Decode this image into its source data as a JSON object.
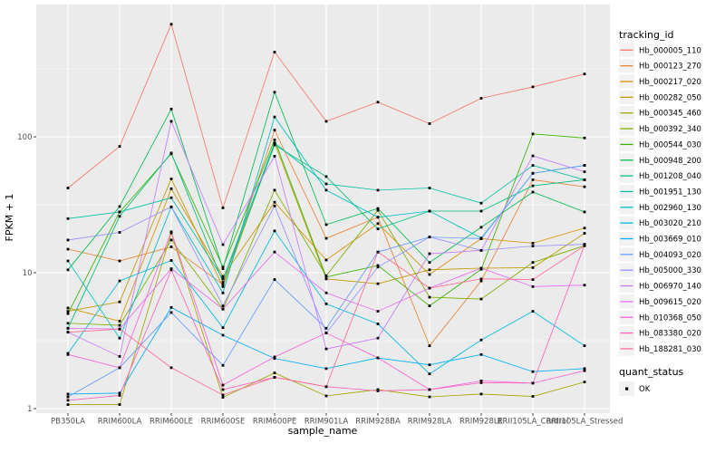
{
  "figure": {
    "panel": {
      "background": "#EBEBEB",
      "grid_color": "#FFFFFF",
      "tick_color": "#333333",
      "text_color": "#4D4D4D",
      "point_color": "#000000",
      "legend_key_bg": "#F2F2F2"
    },
    "legend": {
      "tracking_title": "tracking_id",
      "quant_title": "quant_status",
      "quant_items": [
        {
          "label": "OK",
          "marker": "black-square"
        }
      ]
    }
  },
  "chart_data": {
    "type": "line",
    "title": "",
    "xlabel": "sample_name",
    "ylabel": "FPKM + 1",
    "yscale": "log10",
    "ylim": [
      1,
      700
    ],
    "y_major_ticks": [
      1,
      10,
      100
    ],
    "y_minor_ticks": [
      3.162,
      31.62,
      316.2
    ],
    "grid": true,
    "legend_position": "right",
    "point_marker": "black-square",
    "x": [
      "PB350LA",
      "RRIM600LA",
      "RRIM600LE",
      "RRIM600SE",
      "RRIM600PE",
      "RRIM901LA",
      "RRIM928BA",
      "RRIM928LA",
      "RRIM928LE",
      "RRII105LA_Control",
      "RRII105LA_Stressed"
    ],
    "series": [
      {
        "name": "Hb_000005_110",
        "color": "#F8766D",
        "quant_status": "OK",
        "values": [
          42,
          85,
          674,
          30,
          420,
          130,
          180,
          125,
          192,
          233,
          290
        ]
      },
      {
        "name": "Hb_000123_270",
        "color": "#EA8331",
        "quant_status": "OK",
        "values": [
          14.9,
          12.2,
          15.5,
          8.2,
          112,
          17.9,
          25.6,
          2.9,
          8.7,
          48.3,
          42.9
        ]
      },
      {
        "name": "Hb_000217_020",
        "color": "#D89000",
        "quant_status": "OK",
        "values": [
          5.5,
          4.4,
          41.5,
          9.4,
          33,
          12.4,
          23,
          9.7,
          17.8,
          16.5,
          21.3
        ]
      },
      {
        "name": "Hb_000282_050",
        "color": "#C09B00",
        "quant_status": "OK",
        "values": [
          5.2,
          6.1,
          49,
          7.9,
          90,
          9.0,
          8.3,
          10.5,
          10.8,
          10.9,
          19.5
        ]
      },
      {
        "name": "Hb_000345_460",
        "color": "#A3A500",
        "quant_status": "OK",
        "values": [
          1.07,
          1.07,
          19.6,
          1.21,
          1.83,
          1.24,
          1.38,
          1.22,
          1.28,
          1.23,
          1.57
        ]
      },
      {
        "name": "Hb_000392_340",
        "color": "#7CAE00",
        "quant_status": "OK",
        "values": [
          4.25,
          4.1,
          17.4,
          5.4,
          40.5,
          9.5,
          28.8,
          6.6,
          6.4,
          11.9,
          15.8
        ]
      },
      {
        "name": "Hb_000544_030",
        "color": "#39B600",
        "quant_status": "OK",
        "values": [
          5.0,
          28,
          75,
          11,
          95,
          9.3,
          11.3,
          5.7,
          10.6,
          105,
          98
        ]
      },
      {
        "name": "Hb_000948_200",
        "color": "#00BB4E",
        "quant_status": "OK",
        "values": [
          10.5,
          30.7,
          160,
          10.7,
          213,
          22.6,
          29.7,
          11.9,
          21.6,
          39.2,
          28
        ]
      },
      {
        "name": "Hb_001208_040",
        "color": "#00BF7D",
        "quant_status": "OK",
        "values": [
          3.9,
          26,
          76,
          8.5,
          87,
          51,
          21,
          28.4,
          28.4,
          43.6,
          48.3
        ]
      },
      {
        "name": "Hb_001951_130",
        "color": "#00C1A3",
        "quant_status": "OK",
        "values": [
          25,
          28,
          35.6,
          9.0,
          90,
          45,
          40.5,
          42,
          32.5,
          61.6,
          48.3
        ]
      },
      {
        "name": "Hb_002960_130",
        "color": "#00BFC4",
        "quant_status": "OK",
        "values": [
          12.2,
          3.3,
          30.5,
          7.1,
          140,
          40.5,
          25.6,
          28.4,
          18,
          53.9,
          61.6
        ]
      },
      {
        "name": "Hb_003020_210",
        "color": "#00BAE0",
        "quant_status": "OK",
        "values": [
          2.55,
          8.7,
          12.3,
          3.94,
          20.3,
          5.9,
          4.2,
          1.8,
          3.2,
          5.2,
          2.9
        ]
      },
      {
        "name": "Hb_003669_010",
        "color": "#00B0F6",
        "quant_status": "OK",
        "values": [
          1.28,
          1.3,
          5.55,
          3.47,
          2.34,
          1.97,
          2.36,
          2.1,
          2.5,
          1.87,
          1.97
        ]
      },
      {
        "name": "Hb_004093_020",
        "color": "#619CFF",
        "quant_status": "OK",
        "values": [
          1.22,
          2.0,
          5.1,
          2.08,
          8.9,
          3.9,
          14.2,
          18.3,
          17.8,
          53.9,
          61.6
        ]
      },
      {
        "name": "Hb_005000_330",
        "color": "#9590FF",
        "quant_status": "OK",
        "values": [
          17.4,
          19.8,
          30.5,
          5.7,
          31,
          3.6,
          11.0,
          18.3,
          14.6,
          15.7,
          16.2
        ]
      },
      {
        "name": "Hb_006970_140",
        "color": "#C77CFF",
        "quant_status": "OK",
        "values": [
          3.65,
          2.42,
          130,
          16.1,
          72,
          2.75,
          3.3,
          13.8,
          14.6,
          72.4,
          55.3
        ]
      },
      {
        "name": "Hb_009615_020",
        "color": "#E76BF3",
        "quant_status": "OK",
        "values": [
          3.9,
          3.85,
          10.7,
          5.4,
          14.2,
          7.1,
          5.2,
          7.7,
          10.8,
          7.9,
          8.1
        ]
      },
      {
        "name": "Hb_010368_050",
        "color": "#FA62DB",
        "quant_status": "OK",
        "values": [
          2.5,
          2.0,
          20,
          1.49,
          2.4,
          3.6,
          2.36,
          1.38,
          1.6,
          1.54,
          1.9
        ]
      },
      {
        "name": "Hb_083380_020",
        "color": "#FF62BC",
        "quant_status": "OK",
        "values": [
          1.15,
          1.25,
          10.5,
          1.38,
          1.7,
          1.45,
          1.35,
          1.38,
          1.55,
          1.54,
          16.0
        ]
      },
      {
        "name": "Hb_188281_030",
        "color": "#FF6A98",
        "quant_status": "OK",
        "values": [
          3.65,
          3.85,
          2.0,
          1.26,
          1.7,
          1.45,
          14.2,
          7.7,
          9.0,
          8.9,
          15.8
        ]
      }
    ]
  }
}
